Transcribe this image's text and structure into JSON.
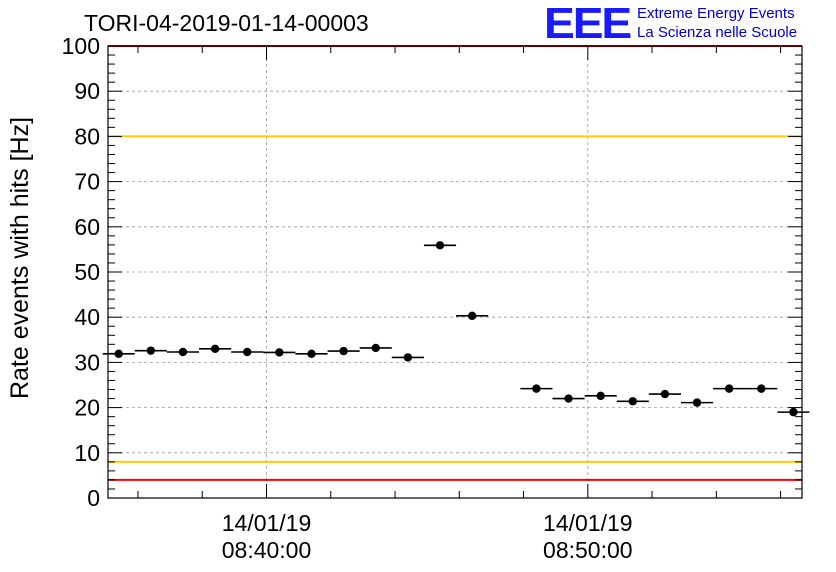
{
  "title": "TORI-04-2019-01-14-00003",
  "logo": {
    "mark": "EEE",
    "line1": "Extreme Energy Events",
    "line2": "La Scienza nelle Scuole",
    "color": "#1a1aff"
  },
  "chart_data": {
    "type": "scatter",
    "ylabel": "Rate events with hits [Hz]",
    "ylim": [
      0,
      100
    ],
    "yticks": [
      0,
      10,
      20,
      30,
      40,
      50,
      60,
      70,
      80,
      90,
      100
    ],
    "xlim": [
      "08:35:04",
      "08:56:40"
    ],
    "xticks": [
      {
        "time": "08:40:00",
        "date": "14/01/19",
        "clock": "08:40:00"
      },
      {
        "time": "08:50:00",
        "date": "14/01/19",
        "clock": "08:50:00"
      }
    ],
    "grid": true,
    "thresholds": [
      {
        "value": 4,
        "color": "#ff0000"
      },
      {
        "value": 8,
        "color": "#ffcc00"
      },
      {
        "value": 80,
        "color": "#ffcc00"
      },
      {
        "value": 100,
        "color": "#ff0000"
      }
    ],
    "bin_width_seconds": 60,
    "series": [
      {
        "x": [
          "08:35:24",
          "08:36:24",
          "08:37:24",
          "08:38:24",
          "08:39:24",
          "08:40:24",
          "08:41:24",
          "08:42:24",
          "08:43:24",
          "08:44:24",
          "08:45:24",
          "08:46:24",
          "08:48:24",
          "08:49:24",
          "08:50:24",
          "08:51:24",
          "08:52:24",
          "08:53:24",
          "08:54:24",
          "08:55:24",
          "08:56:24"
        ],
        "y": [
          31.9,
          32.6,
          32.3,
          33.0,
          32.3,
          32.2,
          31.9,
          32.5,
          33.2,
          31.1,
          55.9,
          40.3,
          24.2,
          22.0,
          22.6,
          21.4,
          23.0,
          21.1,
          24.2,
          24.2,
          19.0
        ]
      }
    ]
  }
}
